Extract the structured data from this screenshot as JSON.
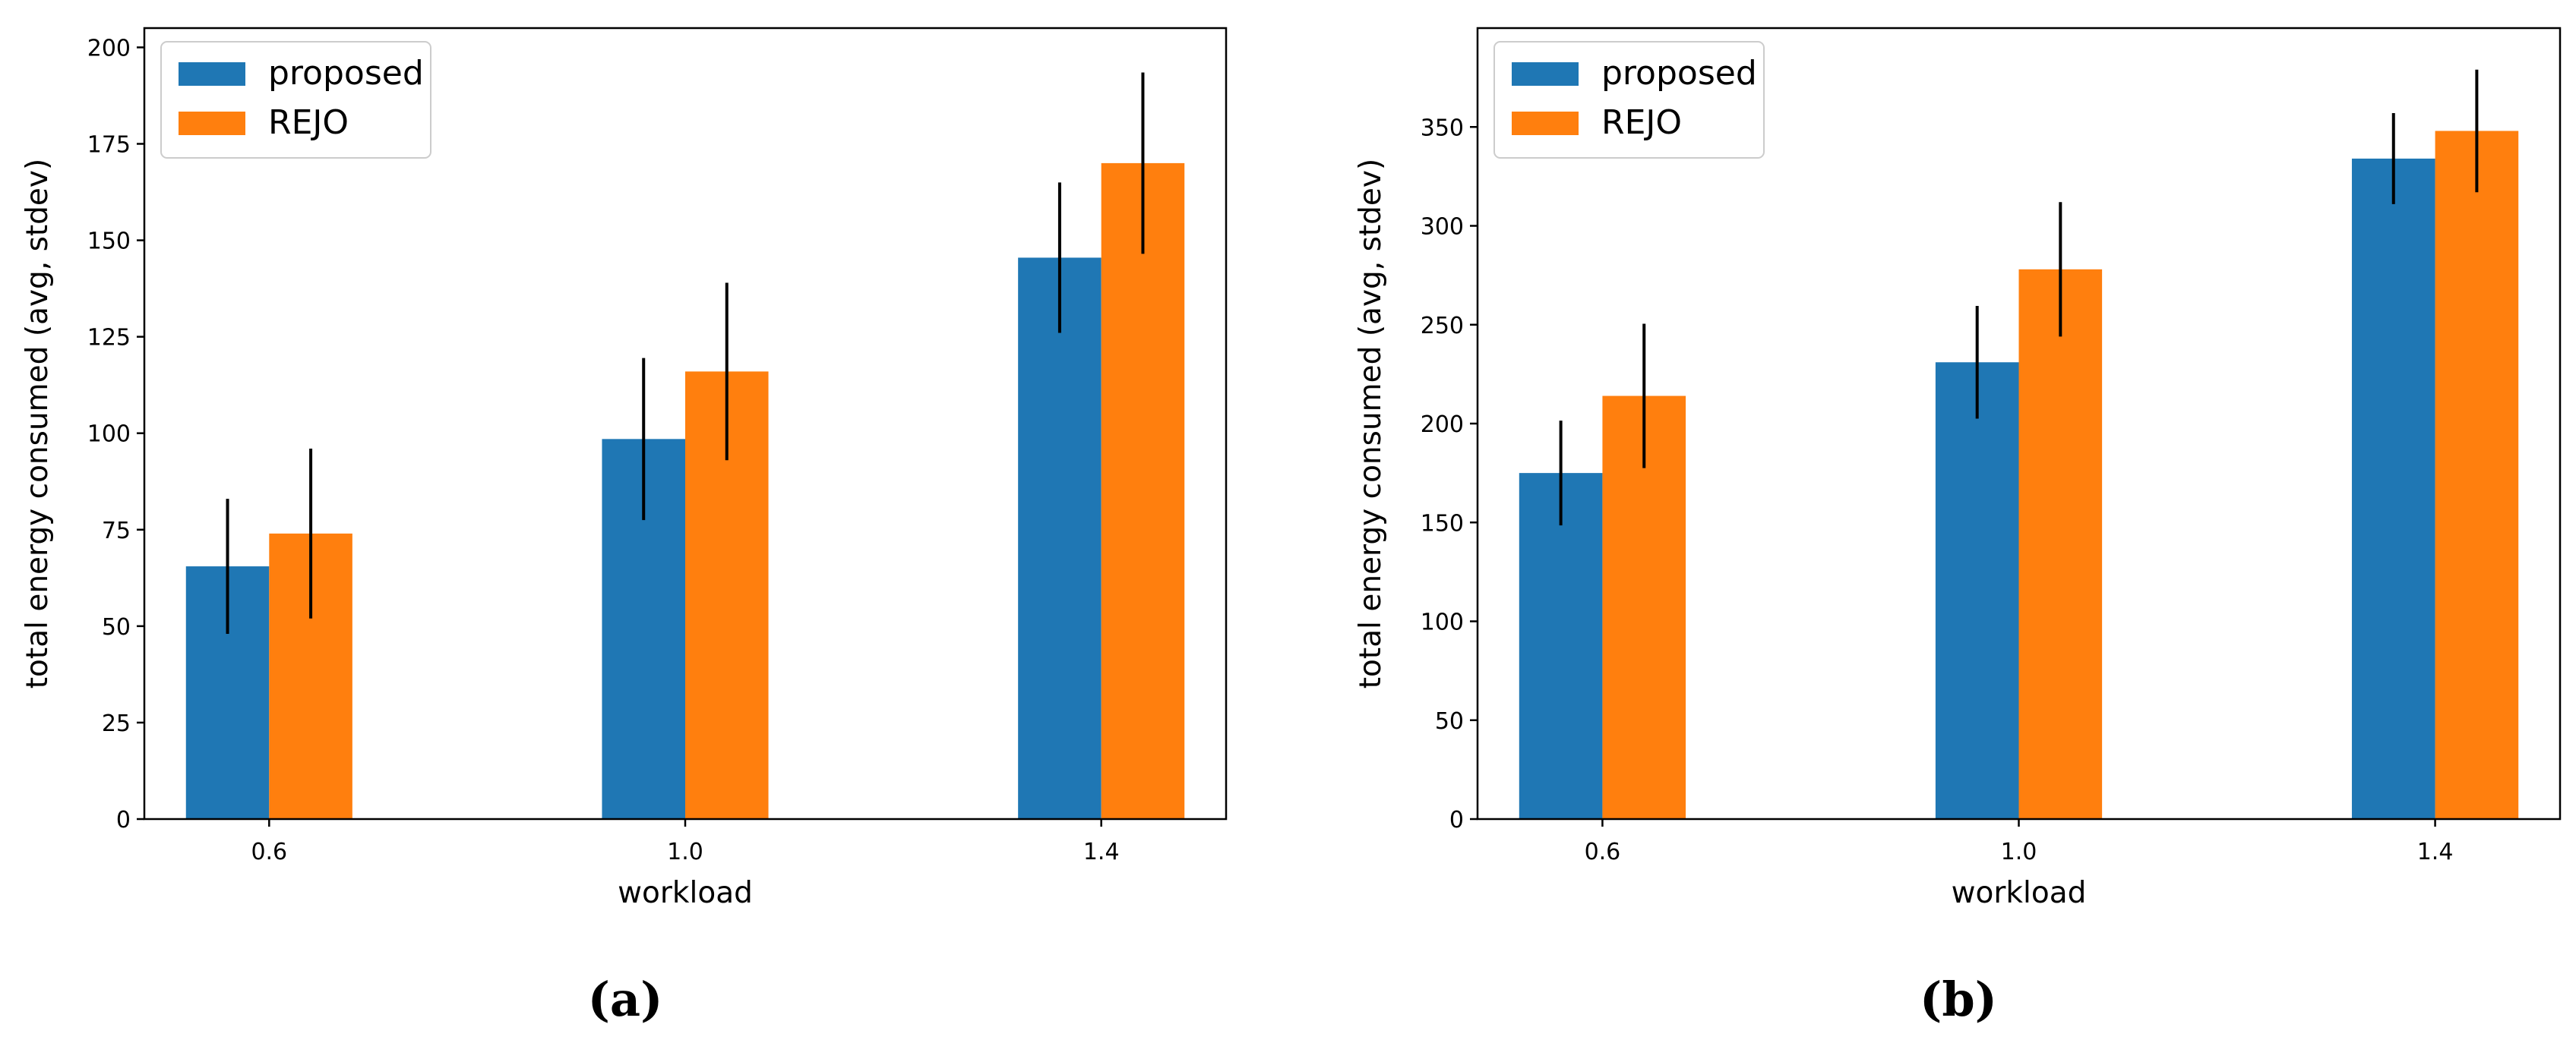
{
  "colors": {
    "proposed": "#1f77b4",
    "rejo": "#ff7f0e",
    "errorbar": "#000000"
  },
  "chart_data": [
    {
      "type": "bar",
      "caption": "(a)",
      "title": "",
      "xlabel": "workload",
      "ylabel": "total energy consumed (avg, stdev)",
      "categories": [
        "0.6",
        "1.0",
        "1.4"
      ],
      "ylim": [
        0,
        205
      ],
      "yticks": [
        "0",
        "25",
        "50",
        "75",
        "100",
        "125",
        "150",
        "175",
        "200"
      ],
      "legend": {
        "position": "top-left",
        "entries": [
          "proposed",
          "REJO"
        ]
      },
      "series": [
        {
          "name": "proposed",
          "values": [
            65.5,
            98.5,
            145.5
          ],
          "errors": [
            17.5,
            21,
            19.5
          ]
        },
        {
          "name": "REJO",
          "values": [
            74,
            116,
            170
          ],
          "errors": [
            22,
            23,
            23.5
          ]
        }
      ]
    },
    {
      "type": "bar",
      "caption": "(b)",
      "title": "",
      "xlabel": "workload",
      "ylabel": "total energy consumed (avg, stdev)",
      "categories": [
        "0.6",
        "1.0",
        "1.4"
      ],
      "ylim": [
        0,
        400
      ],
      "yticks": [
        "0",
        "50",
        "100",
        "150",
        "200",
        "250",
        "300",
        "350"
      ],
      "legend": {
        "position": "top-left",
        "entries": [
          "proposed",
          "REJO"
        ]
      },
      "series": [
        {
          "name": "proposed",
          "values": [
            175,
            231,
            334
          ],
          "errors": [
            26.5,
            28.5,
            23
          ]
        },
        {
          "name": "REJO",
          "values": [
            214,
            278,
            348
          ],
          "errors": [
            36.5,
            34,
            31
          ]
        }
      ]
    }
  ]
}
